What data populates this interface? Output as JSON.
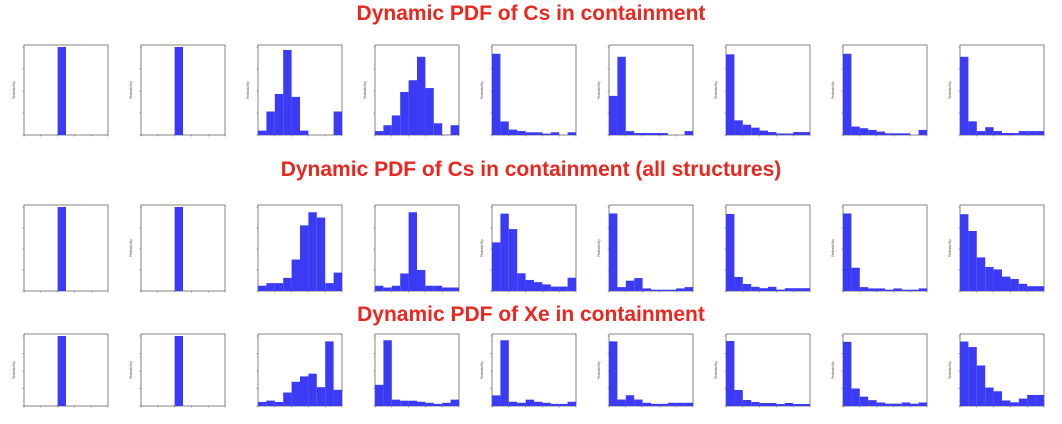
{
  "titles": {
    "cs": "Dynamic PDF of Cs in containment",
    "cs_all": "Dynamic PDF of Cs in containment (all structures)",
    "xe": "Dynamic PDF of Xe in containment"
  },
  "colors": {
    "title": "#e8281e",
    "bar": "#3b3bf5"
  },
  "chart_data": [
    {
      "type": "bar",
      "row": 1,
      "panel": 1,
      "ylabel": "Probability",
      "values": [
        0,
        0,
        0,
        0,
        100,
        0,
        0,
        0,
        0,
        0
      ],
      "ylim": [
        0,
        100
      ]
    },
    {
      "type": "bar",
      "row": 1,
      "panel": 2,
      "ylabel": "Probability",
      "values": [
        0,
        0,
        0,
        0,
        100,
        0,
        0,
        0,
        0,
        0
      ],
      "ylim": [
        0,
        100
      ]
    },
    {
      "type": "bar",
      "row": 1,
      "panel": 3,
      "ylabel": "Probability",
      "values": [
        3,
        16,
        28,
        58,
        26,
        3,
        0,
        0,
        0,
        16
      ],
      "ylim": [
        0,
        60
      ]
    },
    {
      "type": "bar",
      "row": 1,
      "panel": 4,
      "ylabel": "Probability",
      "values": [
        2,
        5,
        10,
        22,
        28,
        40,
        24,
        6,
        0,
        5
      ],
      "ylim": [
        0,
        45
      ]
    },
    {
      "type": "bar",
      "row": 1,
      "panel": 5,
      "ylabel": "Probability",
      "values": [
        60,
        10,
        4,
        3,
        2,
        2,
        1,
        2,
        0,
        2
      ],
      "ylim": [
        0,
        65
      ]
    },
    {
      "type": "bar",
      "row": 1,
      "panel": 6,
      "ylabel": "Probability",
      "values": [
        20,
        40,
        2,
        1,
        1,
        1,
        1,
        0,
        0,
        2
      ],
      "ylim": [
        0,
        45
      ]
    },
    {
      "type": "bar",
      "row": 1,
      "panel": 7,
      "ylabel": "Probability",
      "values": [
        55,
        10,
        7,
        5,
        3,
        2,
        1,
        1,
        2,
        2
      ],
      "ylim": [
        0,
        60
      ]
    },
    {
      "type": "bar",
      "row": 1,
      "panel": 8,
      "ylabel": "Probability",
      "values": [
        48,
        5,
        4,
        3,
        2,
        1,
        1,
        1,
        0,
        3
      ],
      "ylim": [
        0,
        52
      ]
    },
    {
      "type": "bar",
      "row": 1,
      "panel": 9,
      "ylabel": "Probability",
      "values": [
        40,
        7,
        2,
        4,
        2,
        1,
        1,
        2,
        2,
        2
      ],
      "ylim": [
        0,
        45
      ]
    },
    {
      "type": "bar",
      "row": 2,
      "panel": 1,
      "values": [
        0,
        0,
        0,
        0,
        100,
        0,
        0,
        0,
        0,
        0
      ],
      "ylim": [
        0,
        100
      ]
    },
    {
      "type": "bar",
      "row": 2,
      "panel": 2,
      "ylabel": "Probability",
      "values": [
        0,
        0,
        0,
        0,
        100,
        0,
        0,
        0,
        0,
        0
      ],
      "ylim": [
        0,
        100
      ]
    },
    {
      "type": "bar",
      "row": 2,
      "panel": 3,
      "values": [
        2,
        3,
        3,
        5,
        12,
        25,
        30,
        28,
        3,
        7
      ],
      "ylim": [
        0,
        32
      ]
    },
    {
      "type": "bar",
      "row": 2,
      "panel": 4,
      "values": [
        3,
        2,
        3,
        10,
        45,
        12,
        3,
        3,
        2,
        2
      ],
      "ylim": [
        0,
        48
      ]
    },
    {
      "type": "bar",
      "row": 2,
      "panel": 5,
      "ylabel": "Probability",
      "values": [
        22,
        35,
        28,
        8,
        5,
        4,
        3,
        2,
        2,
        6
      ],
      "ylim": [
        0,
        38
      ]
    },
    {
      "type": "bar",
      "row": 2,
      "panel": 6,
      "ylabel": "Probability",
      "values": [
        60,
        3,
        8,
        10,
        2,
        1,
        1,
        1,
        2,
        3
      ],
      "ylim": [
        0,
        65
      ]
    },
    {
      "type": "bar",
      "row": 2,
      "panel": 7,
      "values": [
        55,
        10,
        5,
        3,
        2,
        3,
        1,
        2,
        2,
        2
      ],
      "ylim": [
        0,
        60
      ]
    },
    {
      "type": "bar",
      "row": 2,
      "panel": 8,
      "ylabel": "Probability",
      "values": [
        60,
        18,
        3,
        2,
        2,
        1,
        2,
        1,
        1,
        2
      ],
      "ylim": [
        0,
        65
      ]
    },
    {
      "type": "bar",
      "row": 2,
      "panel": 9,
      "ylabel": "Probability",
      "values": [
        32,
        25,
        14,
        10,
        9,
        6,
        5,
        3,
        2,
        2
      ],
      "ylim": [
        0,
        35
      ]
    },
    {
      "type": "bar",
      "row": 3,
      "panel": 1,
      "ylabel": "Probability",
      "values": [
        0,
        0,
        0,
        0,
        100,
        0,
        0,
        0,
        0,
        0
      ],
      "ylim": [
        0,
        100
      ]
    },
    {
      "type": "bar",
      "row": 3,
      "panel": 2,
      "ylabel": "Probability",
      "values": [
        0,
        0,
        0,
        0,
        100,
        0,
        0,
        0,
        0,
        0
      ],
      "ylim": [
        0,
        100
      ]
    },
    {
      "type": "bar",
      "row": 3,
      "panel": 3,
      "values": [
        3,
        4,
        3,
        10,
        18,
        22,
        24,
        14,
        48,
        12
      ],
      "ylim": [
        0,
        52
      ]
    },
    {
      "type": "bar",
      "row": 3,
      "panel": 4,
      "values": [
        20,
        62,
        6,
        5,
        5,
        4,
        3,
        2,
        3,
        6
      ],
      "ylim": [
        0,
        66
      ]
    },
    {
      "type": "bar",
      "row": 3,
      "panel": 5,
      "ylabel": "Probability",
      "values": [
        10,
        62,
        4,
        3,
        6,
        4,
        3,
        2,
        2,
        4
      ],
      "ylim": [
        0,
        66
      ]
    },
    {
      "type": "bar",
      "row": 3,
      "panel": 6,
      "ylabel": "Probability",
      "values": [
        60,
        6,
        10,
        6,
        3,
        2,
        2,
        3,
        3,
        3
      ],
      "ylim": [
        0,
        65
      ]
    },
    {
      "type": "bar",
      "row": 3,
      "panel": 7,
      "ylabel": "Probability",
      "values": [
        65,
        16,
        6,
        4,
        3,
        3,
        2,
        3,
        2,
        2
      ],
      "ylim": [
        0,
        70
      ]
    },
    {
      "type": "bar",
      "row": 3,
      "panel": 8,
      "ylabel": "Probability",
      "values": [
        55,
        15,
        8,
        5,
        3,
        2,
        2,
        3,
        2,
        3
      ],
      "ylim": [
        0,
        60
      ]
    },
    {
      "type": "bar",
      "row": 3,
      "panel": 9,
      "ylabel": "Probability",
      "values": [
        35,
        32,
        22,
        10,
        8,
        3,
        2,
        4,
        6,
        6
      ],
      "ylim": [
        0,
        38
      ]
    }
  ]
}
